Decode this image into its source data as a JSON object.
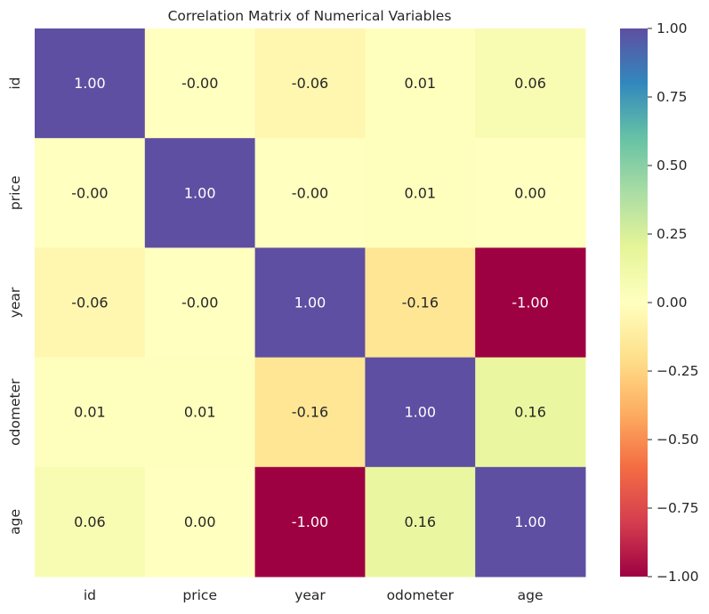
{
  "chart_data": {
    "type": "heatmap",
    "title": "Correlation Matrix of Numerical Variables",
    "x_labels": [
      "id",
      "price",
      "year",
      "odometer",
      "age"
    ],
    "y_labels": [
      "id",
      "price",
      "year",
      "odometer",
      "age"
    ],
    "values": [
      [
        1.0,
        -0.0,
        -0.06,
        0.01,
        0.06
      ],
      [
        -0.0,
        1.0,
        -0.0,
        0.01,
        0.0
      ],
      [
        -0.06,
        -0.0,
        1.0,
        -0.16,
        -1.0
      ],
      [
        0.01,
        0.01,
        -0.16,
        1.0,
        0.16
      ],
      [
        0.06,
        0.0,
        -1.0,
        0.16,
        1.0
      ]
    ],
    "value_labels": [
      [
        "1.00",
        "-0.00",
        "-0.06",
        "0.01",
        "0.06"
      ],
      [
        "-0.00",
        "1.00",
        "-0.00",
        "0.01",
        "0.00"
      ],
      [
        "-0.06",
        "-0.00",
        "1.00",
        "-0.16",
        "-1.00"
      ],
      [
        "0.01",
        "0.01",
        "-0.16",
        "1.00",
        "0.16"
      ],
      [
        "0.06",
        "0.00",
        "-1.00",
        "0.16",
        "1.00"
      ]
    ],
    "colorbar": {
      "colormap": "Spectral",
      "range": [
        -1.0,
        1.0
      ],
      "ticks": [
        1.0,
        0.75,
        0.5,
        0.25,
        0.0,
        -0.25,
        -0.5,
        -0.75,
        -1.0
      ],
      "tick_labels": [
        "1.00",
        "0.75",
        "0.50",
        "0.25",
        "0.00",
        "−0.25",
        "−0.50",
        "−0.75",
        "−1.00"
      ]
    }
  }
}
